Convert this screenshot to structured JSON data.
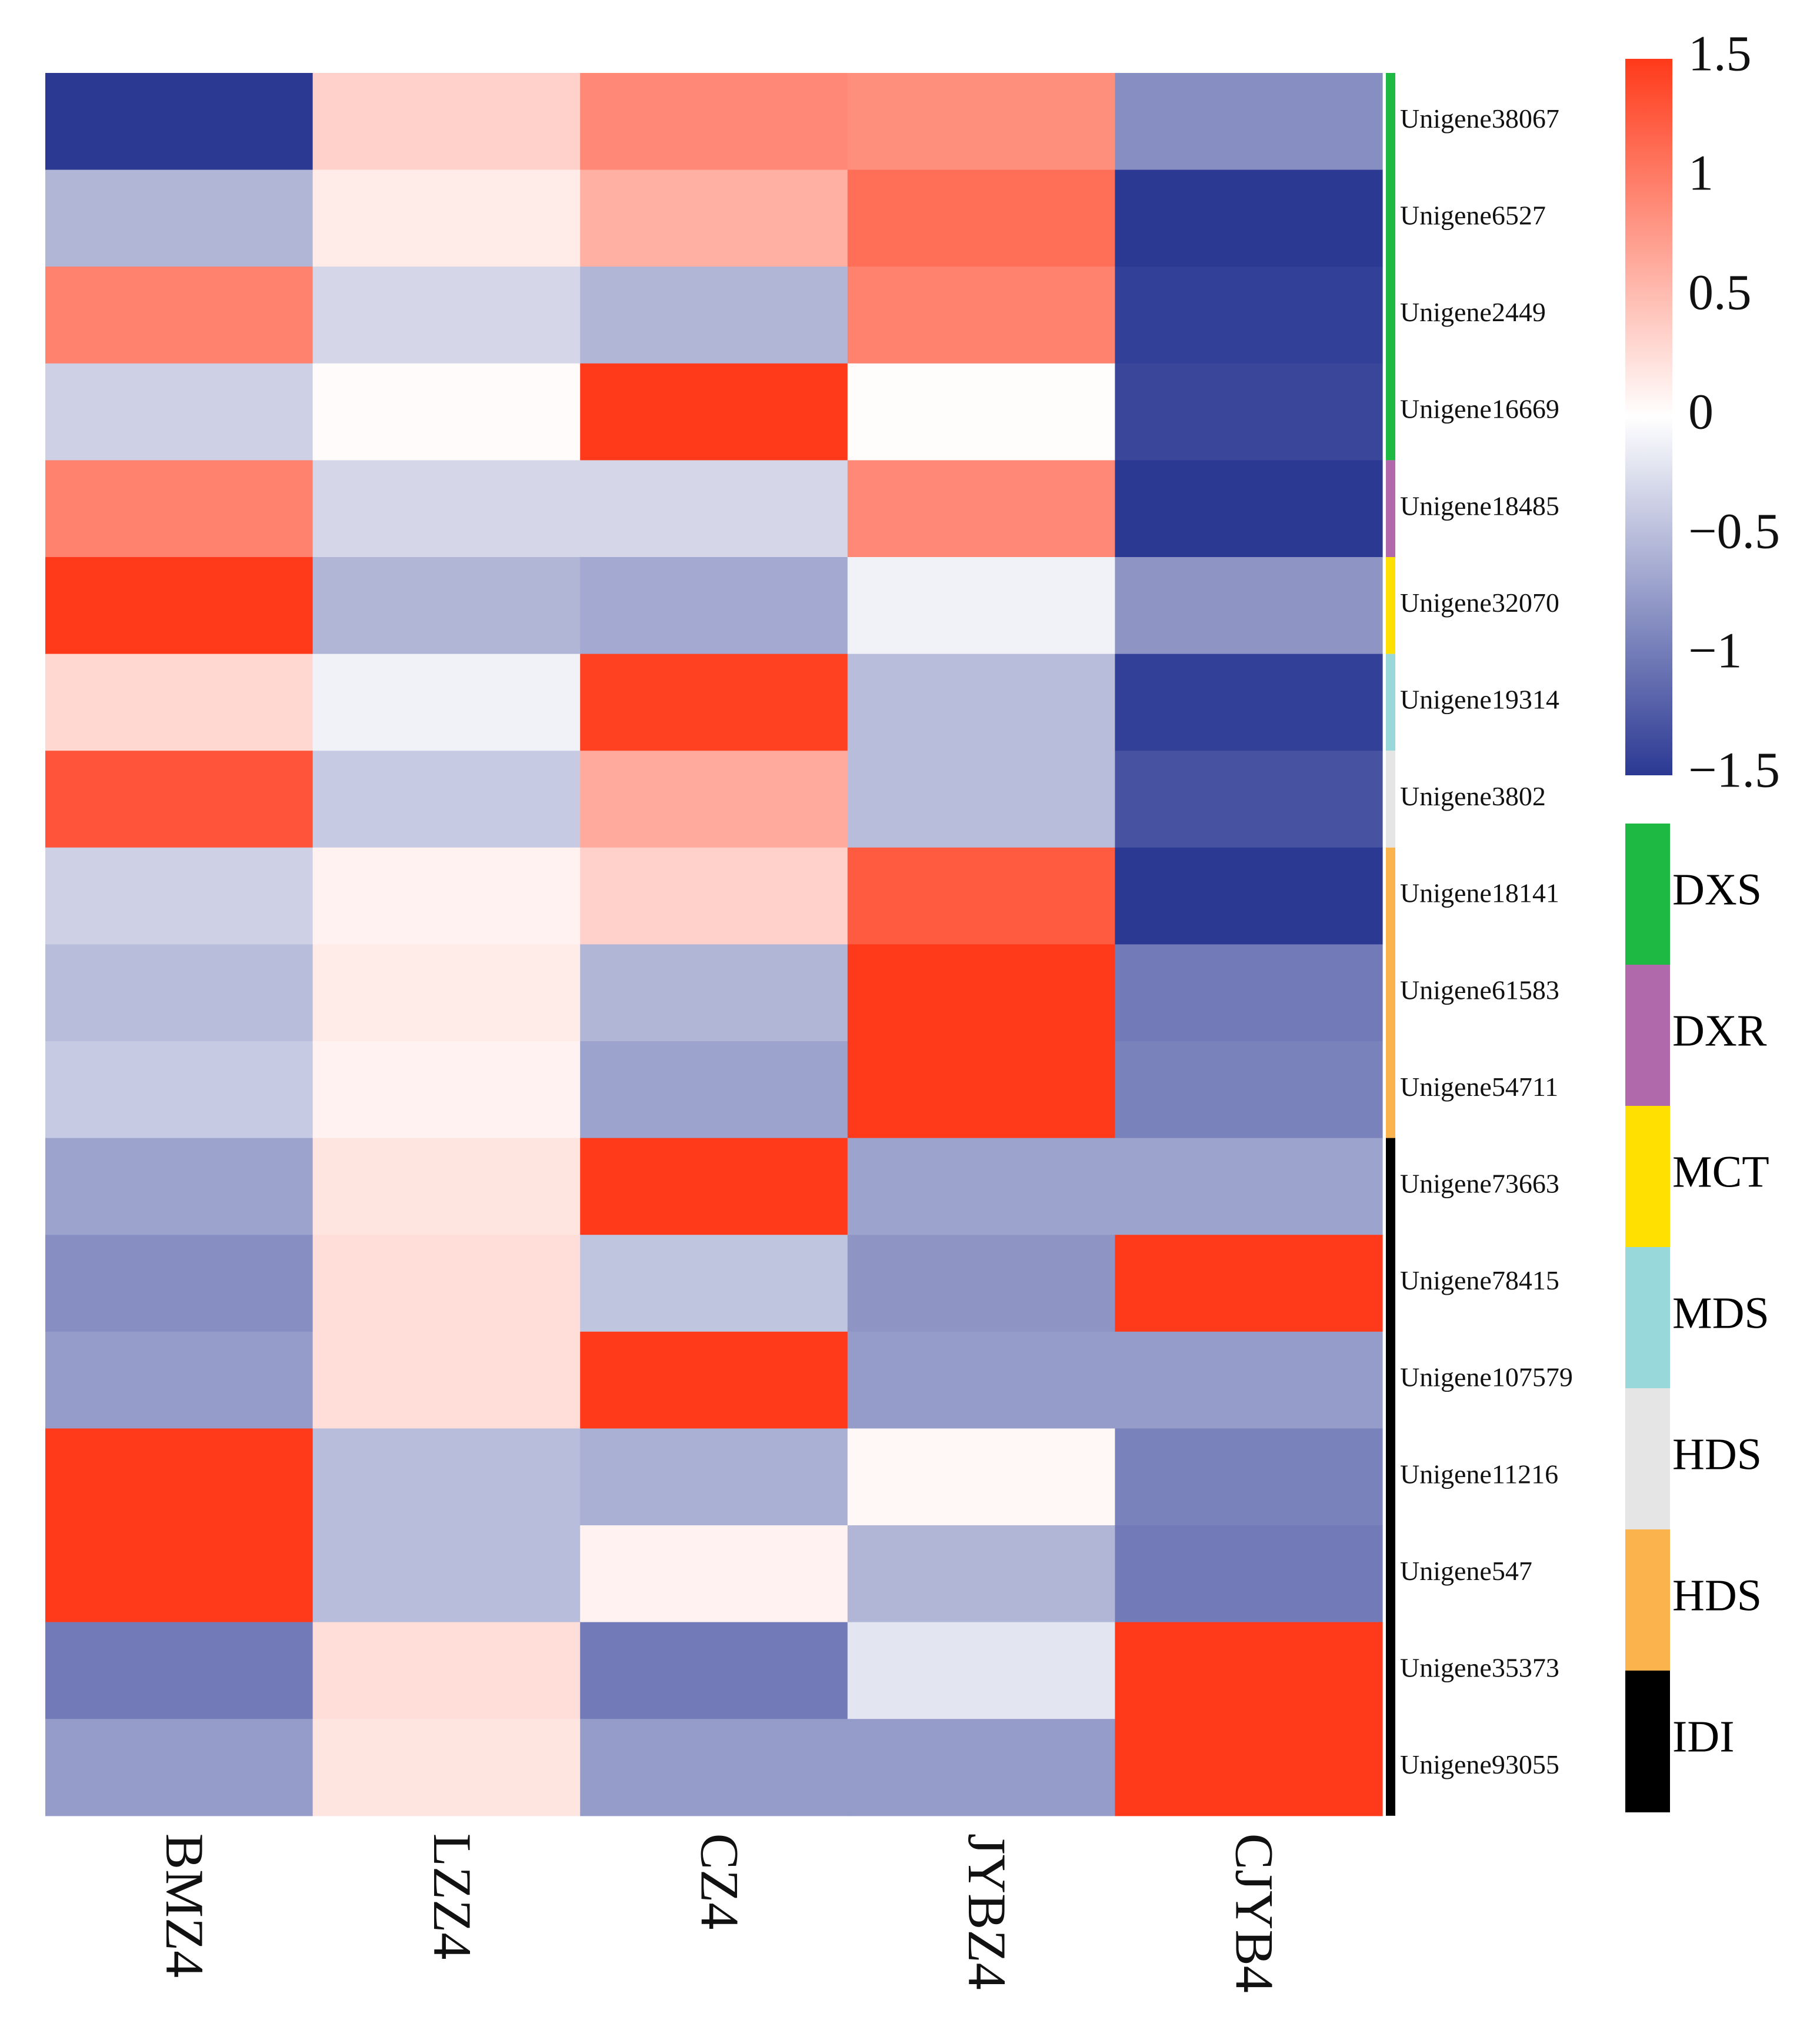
{
  "chart_data": {
    "type": "heatmap",
    "title": "",
    "columns": [
      "BMZ4",
      "LZZ4",
      "CZ4",
      "JYBZ4",
      "CJYB4"
    ],
    "rows": [
      "Unigene38067",
      "Unigene6527",
      "Unigene2449",
      "Unigene16669",
      "Unigene18485",
      "Unigene32070",
      "Unigene19314",
      "Unigene3802",
      "Unigene18141",
      "Unigene61583",
      "Unigene54711",
      "Unigene73663",
      "Unigene78415",
      "Unigene107579",
      "Unigene11216",
      "Unigene547",
      "Unigene35373",
      "Unigene93055"
    ],
    "values": [
      [
        -1.5,
        0.35,
        0.9,
        0.85,
        -0.85
      ],
      [
        -0.55,
        0.15,
        0.6,
        1.1,
        -1.5
      ],
      [
        0.95,
        -0.3,
        -0.55,
        0.95,
        -1.45
      ],
      [
        -0.35,
        0.03,
        1.5,
        0.02,
        -1.4
      ],
      [
        0.95,
        -0.3,
        -0.3,
        0.9,
        -1.5
      ],
      [
        1.5,
        -0.55,
        -0.65,
        -0.1,
        -0.8
      ],
      [
        0.3,
        -0.1,
        1.45,
        -0.5,
        -1.45
      ],
      [
        1.3,
        -0.4,
        0.65,
        -0.5,
        -1.3
      ],
      [
        -0.35,
        0.1,
        0.35,
        1.25,
        -1.5
      ],
      [
        -0.5,
        0.15,
        -0.55,
        1.5,
        -1.0
      ],
      [
        -0.4,
        0.1,
        -0.7,
        1.5,
        -0.95
      ],
      [
        -0.7,
        0.2,
        1.5,
        -0.7,
        -0.7
      ],
      [
        -0.85,
        0.25,
        -0.45,
        -0.8,
        1.5
      ],
      [
        -0.75,
        0.25,
        1.5,
        -0.75,
        -0.75
      ],
      [
        1.5,
        -0.5,
        -0.6,
        0.05,
        -0.95
      ],
      [
        1.5,
        -0.5,
        0.1,
        -0.55,
        -1.0
      ],
      [
        -1.0,
        0.25,
        -1.0,
        -0.2,
        1.5
      ],
      [
        -0.75,
        0.2,
        -0.75,
        -0.75,
        1.5
      ]
    ],
    "row_groups": [
      {
        "label": "DXS",
        "color": "#1db943",
        "count": 4
      },
      {
        "label": "DXR",
        "color": "#b06aac",
        "count": 1
      },
      {
        "label": "MCT",
        "color": "#ffe000",
        "count": 1
      },
      {
        "label": "MDS",
        "color": "#98d8db",
        "count": 1
      },
      {
        "label": "HDS",
        "color": "#e5e5e5",
        "count": 1
      },
      {
        "label": "HDS",
        "color": "#fbb34e",
        "count": 3
      },
      {
        "label": "IDI",
        "color": "#000000",
        "count": 7
      }
    ],
    "colorbar": {
      "range": [
        -1.5,
        1.5
      ],
      "ticks": [
        1.5,
        1,
        0.5,
        0,
        -0.5,
        -1,
        -1.5
      ],
      "tick_labels": [
        "1.5",
        "1",
        "0.5",
        "0",
        "−0.5",
        "−1",
        "−1.5"
      ],
      "low_color": "#2b3993",
      "mid_color": "#ffffff",
      "high_color": "#ff3a1a"
    }
  }
}
